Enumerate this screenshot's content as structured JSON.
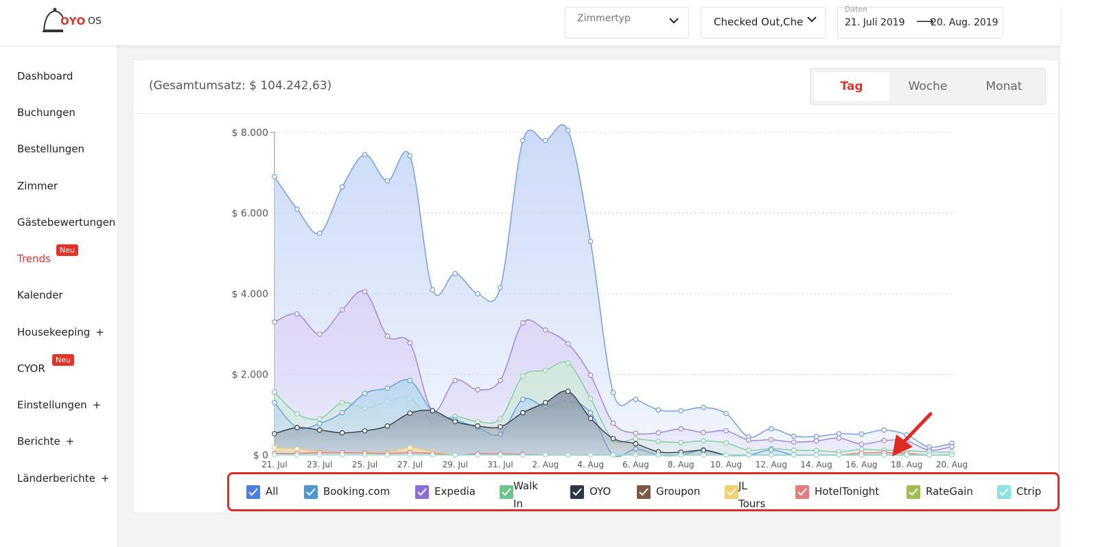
{
  "header": {
    "logo_text": "OYO",
    "logo_suffix": "OS",
    "filters": {
      "roomtype_label": "Zimmertyp",
      "status_value": "Checked Out,Che",
      "dates_label": "Daten",
      "date_from": "21. Juli 2019",
      "date_arrow": "⟶",
      "date_to": "20. Aug. 2019"
    }
  },
  "sidebar": {
    "items": [
      {
        "label": "Dashboard"
      },
      {
        "label": "Buchungen"
      },
      {
        "label": "Bestellungen"
      },
      {
        "label": "Zimmer"
      },
      {
        "label": "Gästebewertungen"
      },
      {
        "label": "Trends",
        "badge": "Neu"
      },
      {
        "label": "Kalender"
      },
      {
        "label": "Housekeeping",
        "plus": "+"
      },
      {
        "label": "CYOR",
        "badge": "Neu"
      },
      {
        "label": "Einstellungen",
        "plus": "+"
      },
      {
        "label": "Berichte",
        "plus": "+"
      },
      {
        "label": "Länderberichte",
        "plus": "+"
      }
    ]
  },
  "card": {
    "total": "(Gesamtumsatz: $ 104.242,63)",
    "segments": [
      "Tag",
      "Woche",
      "Monat"
    ]
  },
  "legend": [
    {
      "label": "All",
      "color": "#4a7fe0"
    },
    {
      "label": "Booking.com",
      "color": "#4e95d6"
    },
    {
      "label": "Expedia",
      "color": "#8c6ed9"
    },
    {
      "label": "Walk In",
      "color": "#6cc48a"
    },
    {
      "label": "OYO",
      "color": "#2d3748"
    },
    {
      "label": "Groupon",
      "color": "#7a5a44"
    },
    {
      "label": "JL Tours",
      "color": "#f2cf72"
    },
    {
      "label": "HotelTonight",
      "color": "#e57c7c"
    },
    {
      "label": "RateGain",
      "color": "#9fbe52"
    },
    {
      "label": "Ctrip",
      "color": "#8ee3e0"
    }
  ],
  "chart_data": {
    "type": "area",
    "title": "",
    "xlabel": "",
    "ylabel": "",
    "ylim": [
      0,
      8000
    ],
    "y_ticks": [
      "$ 0",
      "$ 2.000",
      "$ 4.000",
      "$ 6.000",
      "$ 8.000"
    ],
    "y_tick_values": [
      0,
      2000,
      4000,
      6000,
      8000
    ],
    "x_tick_labels": [
      "21. Jul",
      "23. Jul",
      "25. Jul",
      "27. Jul",
      "29. Jul",
      "31. Jul",
      "2. Aug",
      "4. Aug",
      "6. Aug",
      "8. Aug",
      "10. Aug",
      "12. Aug",
      "14. Aug",
      "16. Aug",
      "18. Aug",
      "20. Aug"
    ],
    "days": 31,
    "series": [
      {
        "name": "All",
        "color": "#6f98e8",
        "fill": "#c9d8f6",
        "values": [
          6900,
          6100,
          5500,
          6650,
          7450,
          6800,
          7420,
          4100,
          4500,
          4000,
          4150,
          7800,
          7800,
          8050,
          5300,
          1550,
          1380,
          1120,
          1100,
          1180,
          1030,
          450,
          650,
          470,
          460,
          530,
          520,
          620,
          500,
          200,
          290
        ]
      },
      {
        "name": "Expedia",
        "color": "#9a82df",
        "fill": "#ddd3f5",
        "values": [
          3300,
          3500,
          3000,
          3600,
          4050,
          2950,
          2780,
          1100,
          1850,
          1620,
          1850,
          3280,
          3100,
          2760,
          1980,
          790,
          540,
          550,
          650,
          560,
          600,
          370,
          380,
          320,
          350,
          420,
          270,
          360,
          350,
          120,
          210
        ]
      },
      {
        "name": "Walk In",
        "color": "#7fcf9a",
        "fill": "#cfead8",
        "values": [
          1560,
          1020,
          900,
          1300,
          1160,
          1330,
          1400,
          850,
          960,
          830,
          900,
          1960,
          2100,
          2280,
          1400,
          380,
          400,
          340,
          310,
          350,
          300,
          120,
          160,
          120,
          110,
          80,
          140,
          120,
          110,
          80,
          70
        ]
      },
      {
        "name": "Booking.com",
        "color": "#5aa0db",
        "fill": "#b9d8ef",
        "values": [
          1300,
          680,
          780,
          1050,
          1530,
          1660,
          1850,
          1080,
          880,
          680,
          520,
          1380,
          1200,
          1350,
          1050,
          0,
          150,
          0,
          0,
          130,
          0,
          0,
          130,
          0,
          0,
          0,
          0,
          0,
          0,
          0,
          0
        ]
      },
      {
        "name": "OYO",
        "color": "#333e4e",
        "fill": "#8e99a6",
        "values": [
          530,
          680,
          620,
          550,
          600,
          720,
          1040,
          1100,
          830,
          720,
          700,
          1050,
          1300,
          1580,
          910,
          410,
          280,
          80,
          70,
          120,
          0,
          0,
          0,
          0,
          0,
          0,
          0,
          0,
          0,
          0,
          0
        ]
      },
      {
        "name": "JL Tours",
        "color": "#f2cf72",
        "fill": "#f8e6b2",
        "values": [
          180,
          150,
          80,
          50,
          60,
          60,
          180,
          80,
          0,
          20,
          0,
          0,
          0,
          0,
          0,
          0,
          0,
          0,
          0,
          0,
          0,
          0,
          0,
          0,
          0,
          0,
          0,
          0,
          0,
          0,
          0
        ]
      },
      {
        "name": "HotelTonight",
        "color": "#e57c7c",
        "fill": "#f3c4c4",
        "values": [
          40,
          40,
          60,
          60,
          50,
          40,
          60,
          40,
          0,
          30,
          30,
          20,
          0,
          0,
          0,
          0,
          0,
          0,
          0,
          0,
          0,
          0,
          0,
          0,
          0,
          0,
          50,
          60,
          40,
          0,
          0
        ]
      },
      {
        "name": "Ctrip",
        "color": "#8ee3e0",
        "fill": "#d7f5f4",
        "values": [
          0,
          0,
          0,
          0,
          0,
          0,
          0,
          0,
          0,
          0,
          0,
          0,
          0,
          0,
          0,
          0,
          0,
          0,
          0,
          0,
          0,
          0,
          0,
          0,
          0,
          0,
          0,
          0,
          0,
          0,
          0
        ]
      }
    ]
  }
}
